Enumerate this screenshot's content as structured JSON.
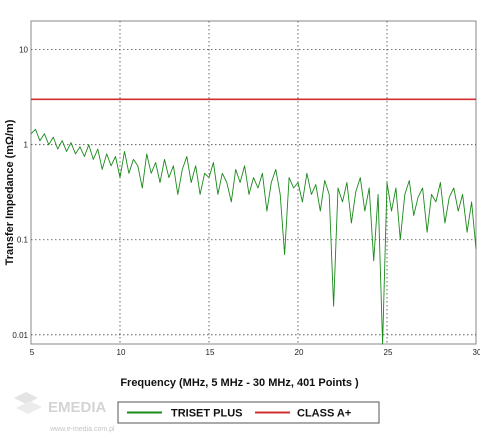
{
  "watermark": {
    "logo_text": "EMEDIA",
    "url": "www.e-media.com.pl"
  },
  "colors": {
    "triset": "#1a8a1a",
    "class": "#d03030",
    "grid": "#444444",
    "frame": "#888888"
  },
  "chart_data": {
    "type": "line",
    "title": "",
    "xlabel": "Frequency (MHz, 5 MHz - 30 MHz, 401 Points )",
    "ylabel": "Transfer Impedance (mΩ/m)",
    "xlim": [
      5,
      30
    ],
    "ylim": [
      0.008,
      20
    ],
    "yscale": "log",
    "grid": true,
    "legend_position": "bottom",
    "x_ticks": [
      "5",
      "10",
      "15",
      "20",
      "25",
      "30"
    ],
    "y_ticks": [
      "10",
      "1",
      "0.1",
      "0.01"
    ],
    "series": [
      {
        "name": "CLASS A+",
        "color": "#d03030",
        "x": [
          5,
          30
        ],
        "y": [
          3,
          3
        ]
      },
      {
        "name": "TRISET PLUS",
        "color": "#1a8a1a",
        "x": [
          5.0,
          5.25,
          5.5,
          5.75,
          6.0,
          6.25,
          6.5,
          6.75,
          7.0,
          7.25,
          7.5,
          7.75,
          8.0,
          8.25,
          8.5,
          8.75,
          9.0,
          9.25,
          9.5,
          9.75,
          10.0,
          10.25,
          10.5,
          10.75,
          11.0,
          11.25,
          11.5,
          11.75,
          12.0,
          12.25,
          12.5,
          12.75,
          13.0,
          13.25,
          13.5,
          13.75,
          14.0,
          14.25,
          14.5,
          14.75,
          15.0,
          15.25,
          15.5,
          15.75,
          16.0,
          16.25,
          16.5,
          16.75,
          17.0,
          17.25,
          17.5,
          17.75,
          18.0,
          18.25,
          18.5,
          18.75,
          19.0,
          19.25,
          19.5,
          19.75,
          20.0,
          20.25,
          20.5,
          20.75,
          21.0,
          21.25,
          21.5,
          21.75,
          22.0,
          22.25,
          22.5,
          22.75,
          23.0,
          23.25,
          23.5,
          23.75,
          24.0,
          24.25,
          24.5,
          24.75,
          25.0,
          25.25,
          25.5,
          25.75,
          26.0,
          26.25,
          26.5,
          26.75,
          27.0,
          27.25,
          27.5,
          27.75,
          28.0,
          28.25,
          28.5,
          28.75,
          29.0,
          29.25,
          29.5,
          29.75,
          30.0
        ],
        "y": [
          1.3,
          1.45,
          1.1,
          1.3,
          1.0,
          1.2,
          0.9,
          1.1,
          0.85,
          1.05,
          0.8,
          0.95,
          0.75,
          1.0,
          0.7,
          0.9,
          0.55,
          0.8,
          0.6,
          0.75,
          0.45,
          0.85,
          0.5,
          0.7,
          0.6,
          0.35,
          0.8,
          0.5,
          0.65,
          0.4,
          0.7,
          0.45,
          0.6,
          0.3,
          0.55,
          0.75,
          0.4,
          0.6,
          0.3,
          0.5,
          0.45,
          0.65,
          0.3,
          0.5,
          0.4,
          0.25,
          0.55,
          0.4,
          0.6,
          0.3,
          0.45,
          0.35,
          0.5,
          0.2,
          0.4,
          0.55,
          0.3,
          0.07,
          0.45,
          0.35,
          0.4,
          0.25,
          0.5,
          0.3,
          0.38,
          0.2,
          0.42,
          0.3,
          0.02,
          0.35,
          0.25,
          0.4,
          0.15,
          0.32,
          0.45,
          0.2,
          0.35,
          0.06,
          0.3,
          0.008,
          0.4,
          0.2,
          0.35,
          0.1,
          0.3,
          0.42,
          0.18,
          0.28,
          0.35,
          0.12,
          0.3,
          0.25,
          0.4,
          0.15,
          0.28,
          0.35,
          0.2,
          0.3,
          0.12,
          0.25,
          0.08
        ]
      }
    ]
  }
}
